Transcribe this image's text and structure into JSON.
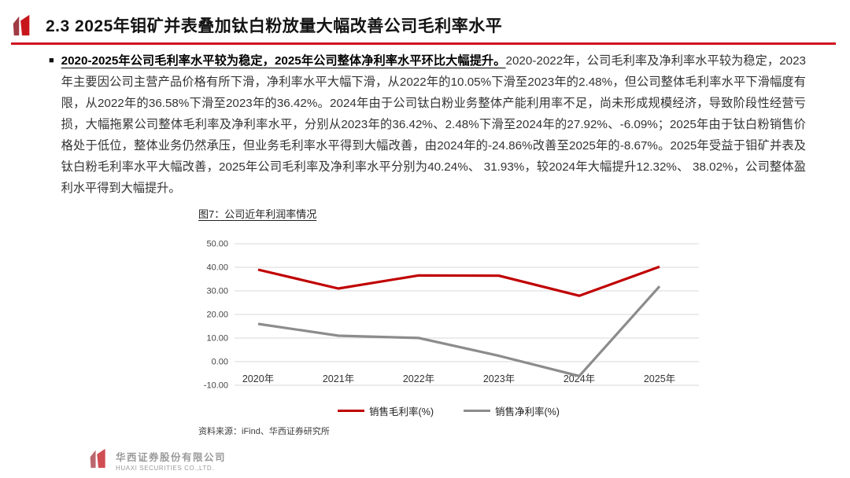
{
  "header": {
    "title": "2.3 2025年钼矿并表叠加钛白粉放量大幅改善公司毛利率水平",
    "accent_color": "#cf1320",
    "logo_color_left": "#9e3b43",
    "logo_color_right": "#c8161d"
  },
  "paragraph": {
    "bullet": "■",
    "lead": "2020-2025年公司毛利率水平较为稳定，2025年公司整体净利率水平环比大幅提升。",
    "body": "2020-2022年，公司毛利率及净利率水平较为稳定，2023年主要因公司主营产品价格有所下滑，净利率水平大幅下滑，从2022年的10.05%下滑至2023年的2.48%，但公司整体毛利率水平下滑幅度有限，从2022年的36.58%下滑至2023年的36.42%。2024年由于公司钛白粉业务整体产能利用率不足，尚未形成规模经济，导致阶段性经营亏损，大幅拖累公司整体毛利率及净利率水平，分别从2023年的36.42%、2.48%下滑至2024年的27.92%、-6.09%；2025年由于钛白粉销售价格处于低位，整体业务仍然承压，但业务毛利率水平得到大幅改善，由2024年的-24.86%改善至2025年的-8.67%。2025年受益于钼矿并表及钛白粉毛利率水平大幅改善，2025年公司毛利率及净利率水平分别为40.24%、 31.93%，较2024年大幅提升12.32%、 38.02%，公司整体盈利水平得到大幅提升。"
  },
  "figure": {
    "title": "图7：公司近年利润率情况",
    "source": "资料来源：iFind、华西证券研究所"
  },
  "chart_data": {
    "type": "line",
    "title": "图7：公司近年利润率情况",
    "categories": [
      "2020年",
      "2021年",
      "2022年",
      "2023年",
      "2024年",
      "2025年"
    ],
    "series": [
      {
        "name": "销售毛利率(%)",
        "color": "#c00000",
        "values": [
          39.0,
          31.0,
          36.58,
          36.42,
          27.92,
          40.24
        ]
      },
      {
        "name": "销售净利率(%)",
        "color": "#8c8c8c",
        "values": [
          16.0,
          11.0,
          10.05,
          2.48,
          -6.09,
          31.93
        ]
      }
    ],
    "ylim": [
      -10,
      50
    ],
    "ytick_step": 10,
    "grid": true,
    "legend_position": "bottom"
  },
  "footer": {
    "company_cn": "华西证券股份有限公司",
    "company_en": "HUAXI SECURITIES CO.,LTD."
  }
}
